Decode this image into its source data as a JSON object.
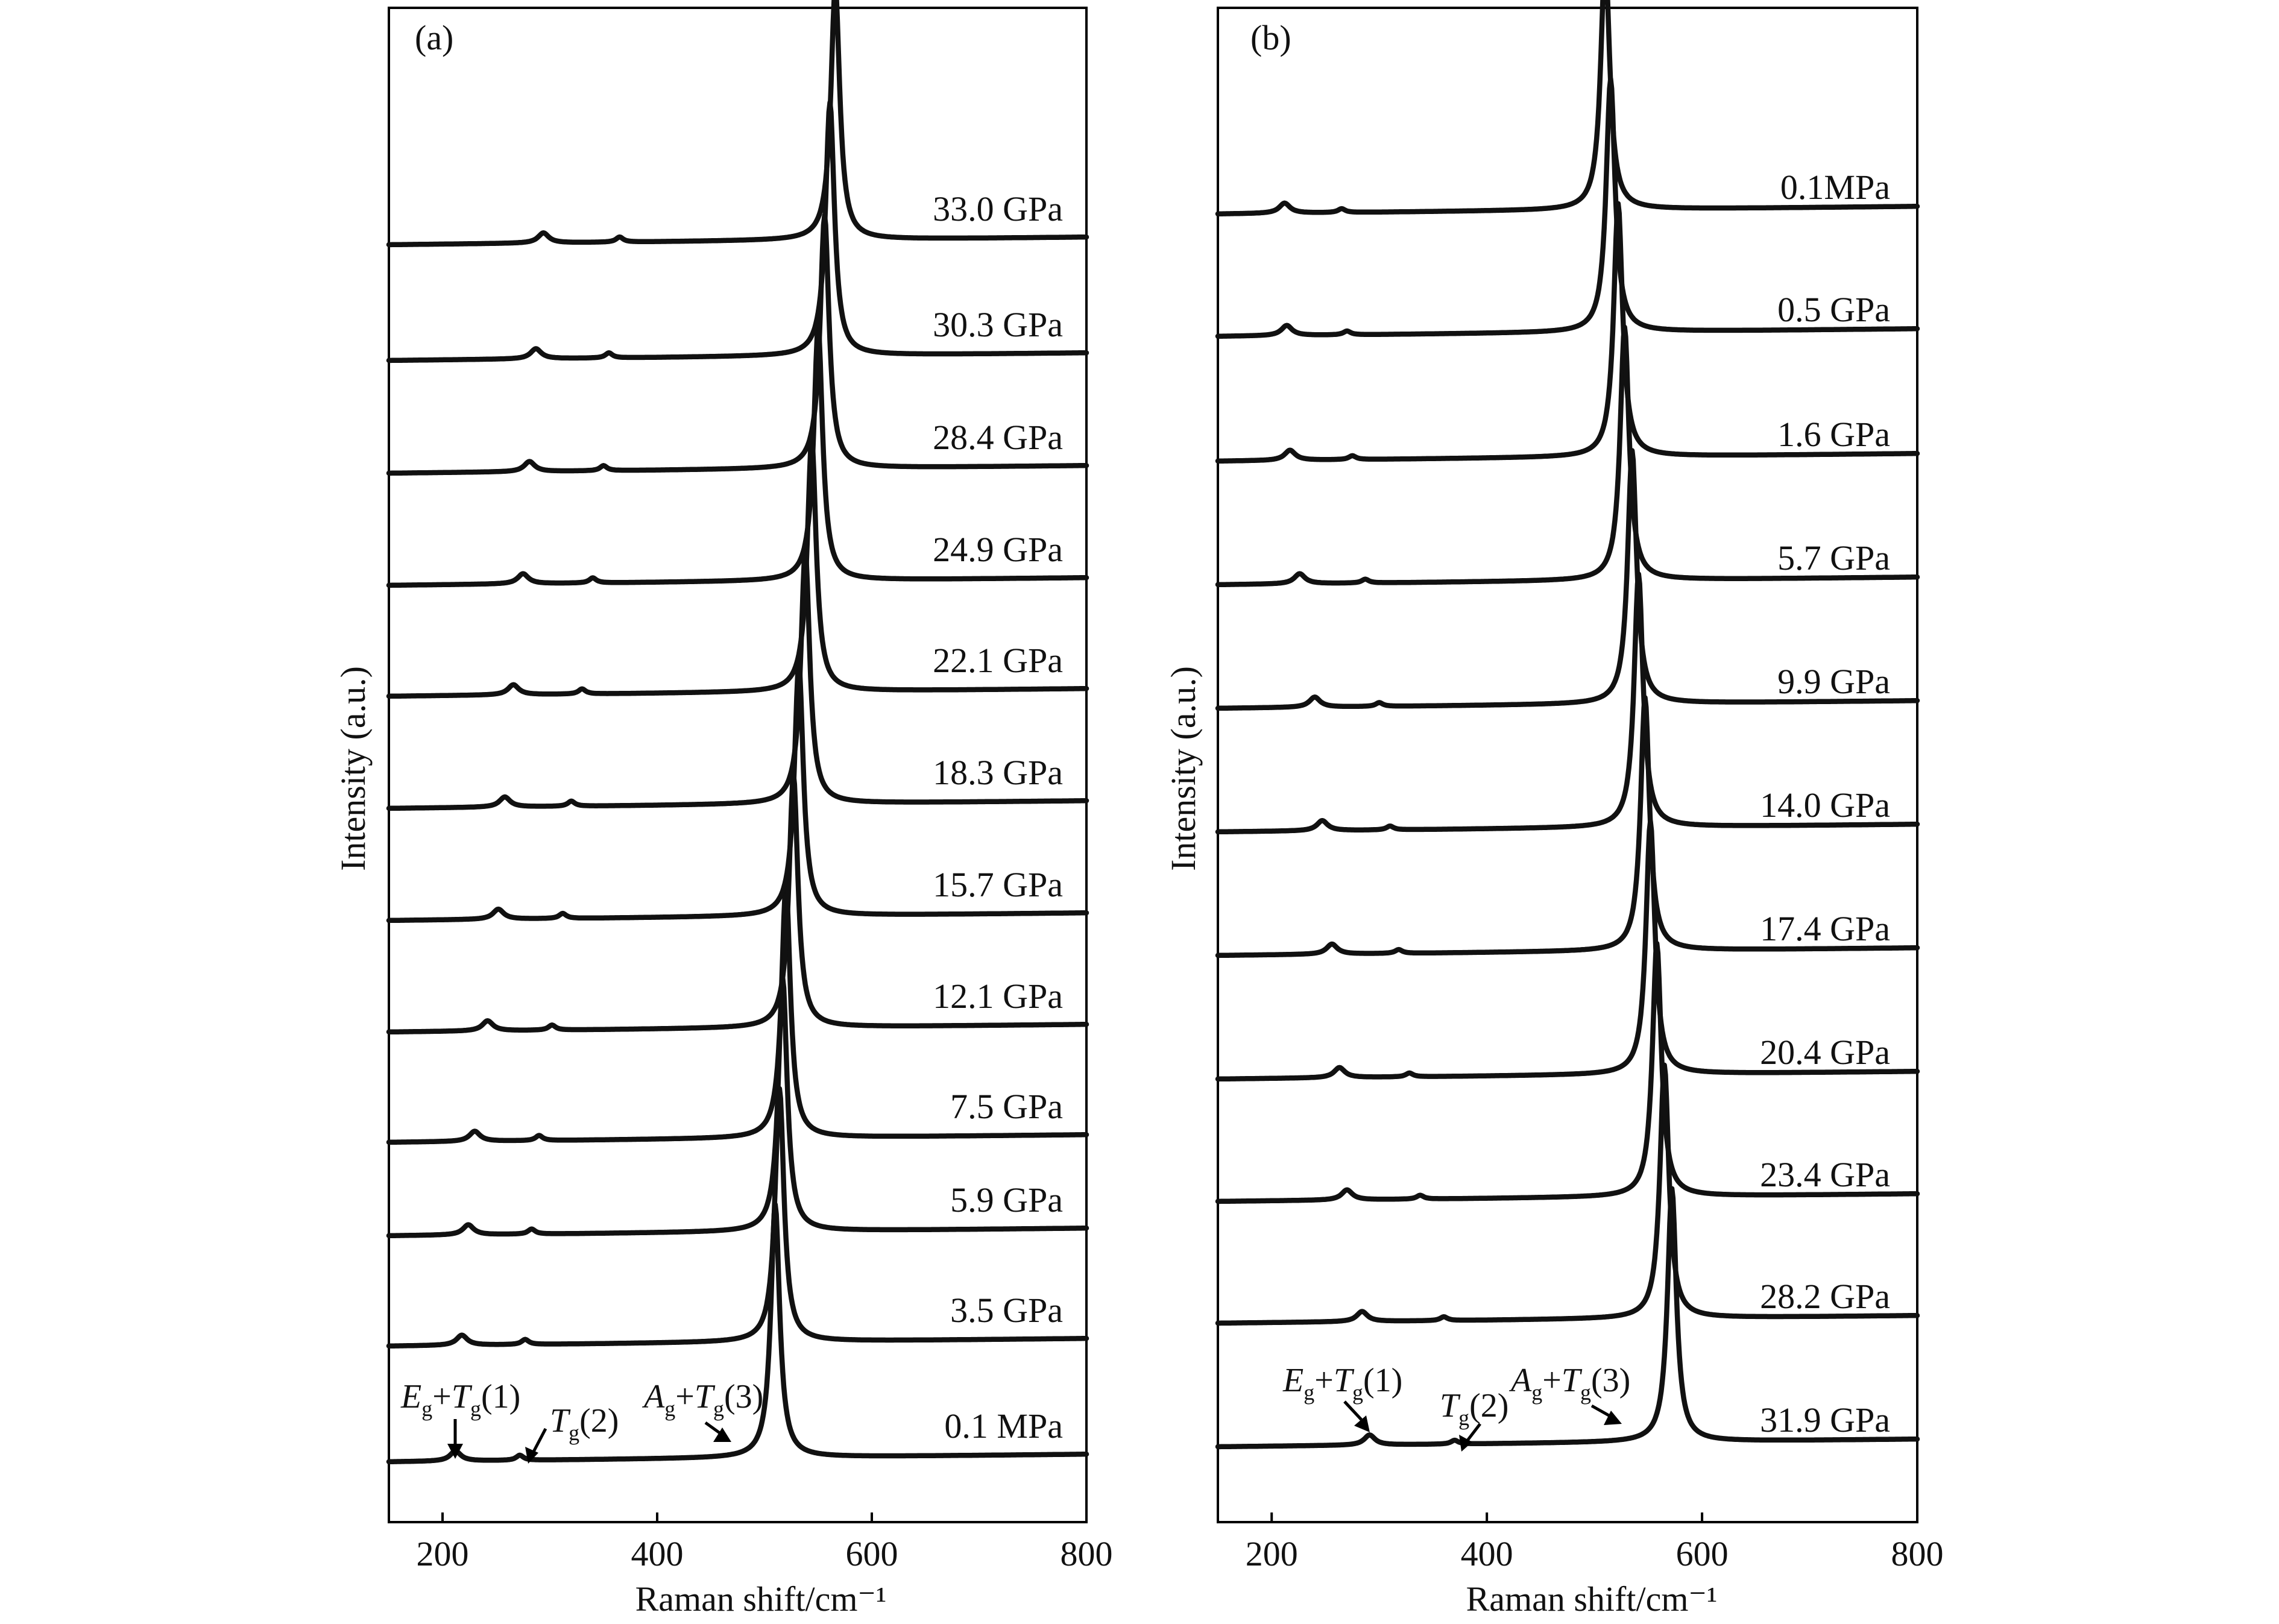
{
  "chart_data": [
    {
      "type": "line",
      "panel_label": "(a)",
      "xlabel": "Raman shift/cm⁻¹",
      "ylabel": "Intensity (a.u.)",
      "xlim": [
        150,
        800
      ],
      "x_ticks": [
        200,
        400,
        600,
        800
      ],
      "grid": false,
      "stacked_offset": true,
      "series": [
        {
          "name": "0.1 MPa",
          "label": "0.1 MPa",
          "peaks": [
            {
              "x": 212,
              "h": 0.04,
              "w": 12
            },
            {
              "x": 272,
              "h": 0.02,
              "w": 8
            },
            {
              "x": 510,
              "h": 1.0,
              "w": 10
            }
          ]
        },
        {
          "name": "3.5 GPa",
          "label": "3.5 GPa",
          "peaks": [
            {
              "x": 218,
              "h": 0.04,
              "w": 12
            },
            {
              "x": 277,
              "h": 0.02,
              "w": 8
            },
            {
              "x": 514,
              "h": 1.0,
              "w": 10
            }
          ]
        },
        {
          "name": "5.9 GPa",
          "label": "5.9 GPa",
          "peaks": [
            {
              "x": 224,
              "h": 0.04,
              "w": 12
            },
            {
              "x": 283,
              "h": 0.02,
              "w": 8
            },
            {
              "x": 517,
              "h": 1.0,
              "w": 10
            }
          ]
        },
        {
          "name": "7.5 GPa",
          "label": "7.5 GPa",
          "peaks": [
            {
              "x": 230,
              "h": 0.04,
              "w": 12
            },
            {
              "x": 290,
              "h": 0.02,
              "w": 8
            },
            {
              "x": 520,
              "h": 1.0,
              "w": 10
            }
          ]
        },
        {
          "name": "12.1 GPa",
          "label": "12.1 GPa",
          "peaks": [
            {
              "x": 242,
              "h": 0.04,
              "w": 12
            },
            {
              "x": 302,
              "h": 0.02,
              "w": 8
            },
            {
              "x": 527,
              "h": 1.0,
              "w": 10
            }
          ]
        },
        {
          "name": "15.7 GPa",
          "label": "15.7 GPa",
          "peaks": [
            {
              "x": 252,
              "h": 0.04,
              "w": 12
            },
            {
              "x": 312,
              "h": 0.02,
              "w": 8
            },
            {
              "x": 532,
              "h": 1.0,
              "w": 10
            }
          ]
        },
        {
          "name": "18.3 GPa",
          "label": "18.3 GPa",
          "peaks": [
            {
              "x": 258,
              "h": 0.04,
              "w": 12
            },
            {
              "x": 320,
              "h": 0.02,
              "w": 8
            },
            {
              "x": 538,
              "h": 1.0,
              "w": 10
            }
          ]
        },
        {
          "name": "22.1 GPa",
          "label": "22.1 GPa",
          "peaks": [
            {
              "x": 266,
              "h": 0.04,
              "w": 12
            },
            {
              "x": 330,
              "h": 0.02,
              "w": 8
            },
            {
              "x": 544,
              "h": 1.0,
              "w": 10
            }
          ]
        },
        {
          "name": "24.9 GPa",
          "label": "24.9 GPa",
          "peaks": [
            {
              "x": 275,
              "h": 0.04,
              "w": 12
            },
            {
              "x": 340,
              "h": 0.02,
              "w": 8
            },
            {
              "x": 550,
              "h": 1.0,
              "w": 10
            }
          ]
        },
        {
          "name": "28.4 GPa",
          "label": "28.4 GPa",
          "peaks": [
            {
              "x": 281,
              "h": 0.04,
              "w": 12
            },
            {
              "x": 350,
              "h": 0.02,
              "w": 8
            },
            {
              "x": 556,
              "h": 1.0,
              "w": 10
            }
          ]
        },
        {
          "name": "30.3 GPa",
          "label": "30.3 GPa",
          "peaks": [
            {
              "x": 287,
              "h": 0.04,
              "w": 12
            },
            {
              "x": 355,
              "h": 0.02,
              "w": 8
            },
            {
              "x": 561,
              "h": 1.0,
              "w": 10
            }
          ]
        },
        {
          "name": "33.0 GPa",
          "label": "33.0 GPa",
          "peaks": [
            {
              "x": 294,
              "h": 0.04,
              "w": 12
            },
            {
              "x": 365,
              "h": 0.02,
              "w": 8
            },
            {
              "x": 566,
              "h": 1.0,
              "w": 10
            }
          ]
        }
      ],
      "annotations": [
        {
          "main": "E",
          "sub": "g",
          "rest": "+",
          "main2": "T",
          "sub2": "g",
          "tail": "(1)"
        },
        {
          "main": "T",
          "sub": "g",
          "tail": "(2)"
        },
        {
          "main": "A",
          "sub": "g",
          "rest": "+",
          "main2": "T",
          "sub2": "g",
          "tail": "(3)"
        }
      ]
    },
    {
      "type": "line",
      "panel_label": "(b)",
      "xlabel": "Raman shift/cm⁻¹",
      "ylabel": "Intensity (a.u.)",
      "xlim": [
        150,
        800
      ],
      "x_ticks": [
        200,
        400,
        600,
        800
      ],
      "grid": false,
      "stacked_offset": true,
      "series": [
        {
          "name": "31.9 GPa",
          "label": "31.9 GPa",
          "peaks": [
            {
              "x": 291,
              "h": 0.04,
              "w": 12
            },
            {
              "x": 370,
              "h": 0.015,
              "w": 8
            },
            {
              "x": 572,
              "h": 1.0,
              "w": 10
            }
          ]
        },
        {
          "name": "28.2 GPa",
          "label": "28.2 GPa",
          "peaks": [
            {
              "x": 284,
              "h": 0.04,
              "w": 12
            },
            {
              "x": 360,
              "h": 0.015,
              "w": 8
            },
            {
              "x": 565,
              "h": 1.0,
              "w": 10
            }
          ]
        },
        {
          "name": "23.4 GPa",
          "label": "23.4 GPa",
          "peaks": [
            {
              "x": 270,
              "h": 0.04,
              "w": 12
            },
            {
              "x": 338,
              "h": 0.015,
              "w": 8
            },
            {
              "x": 558,
              "h": 1.0,
              "w": 10
            }
          ]
        },
        {
          "name": "20.4 GPa",
          "label": "20.4 GPa",
          "peaks": [
            {
              "x": 263,
              "h": 0.04,
              "w": 12
            },
            {
              "x": 328,
              "h": 0.015,
              "w": 8
            },
            {
              "x": 552,
              "h": 1.0,
              "w": 10
            }
          ]
        },
        {
          "name": "17.4 GPa",
          "label": "17.4 GPa",
          "peaks": [
            {
              "x": 256,
              "h": 0.04,
              "w": 12
            },
            {
              "x": 318,
              "h": 0.015,
              "w": 8
            },
            {
              "x": 547,
              "h": 1.0,
              "w": 10
            }
          ]
        },
        {
          "name": "14.0 GPa",
          "label": "14.0 GPa",
          "peaks": [
            {
              "x": 247,
              "h": 0.04,
              "w": 12
            },
            {
              "x": 310,
              "h": 0.015,
              "w": 8
            },
            {
              "x": 541,
              "h": 1.0,
              "w": 10
            }
          ]
        },
        {
          "name": "9.9 GPa",
          "label": "9.9 GPa",
          "peaks": [
            {
              "x": 240,
              "h": 0.04,
              "w": 12
            },
            {
              "x": 300,
              "h": 0.015,
              "w": 8
            },
            {
              "x": 535,
              "h": 1.0,
              "w": 10
            }
          ]
        },
        {
          "name": "5.7 GPa",
          "label": "5.7 GPa",
          "peaks": [
            {
              "x": 226,
              "h": 0.04,
              "w": 12
            },
            {
              "x": 287,
              "h": 0.015,
              "w": 8
            },
            {
              "x": 528,
              "h": 1.0,
              "w": 10
            }
          ]
        },
        {
          "name": "1.6 GPa",
          "label": "1.6 GPa",
          "peaks": [
            {
              "x": 217,
              "h": 0.04,
              "w": 12
            },
            {
              "x": 275,
              "h": 0.015,
              "w": 8
            },
            {
              "x": 522,
              "h": 1.0,
              "w": 10
            }
          ]
        },
        {
          "name": "0.5 GPa",
          "label": "0.5 GPa",
          "peaks": [
            {
              "x": 214,
              "h": 0.04,
              "w": 12
            },
            {
              "x": 270,
              "h": 0.015,
              "w": 8
            },
            {
              "x": 515,
              "h": 1.0,
              "w": 10
            }
          ]
        },
        {
          "name": "0.1MPa",
          "label": "0.1MPa",
          "peaks": [
            {
              "x": 212,
              "h": 0.04,
              "w": 12
            },
            {
              "x": 265,
              "h": 0.015,
              "w": 8
            },
            {
              "x": 510,
              "h": 1.0,
              "w": 10
            }
          ]
        }
      ],
      "annotations": [
        {
          "main": "E",
          "sub": "g",
          "rest": "+",
          "main2": "T",
          "sub2": "g",
          "tail": "(1)"
        },
        {
          "main": "T",
          "sub": "g",
          "tail": "(2)"
        },
        {
          "main": "A",
          "sub": "g",
          "rest": "+",
          "main2": "T",
          "sub2": "g",
          "tail": "(3)"
        }
      ]
    }
  ]
}
